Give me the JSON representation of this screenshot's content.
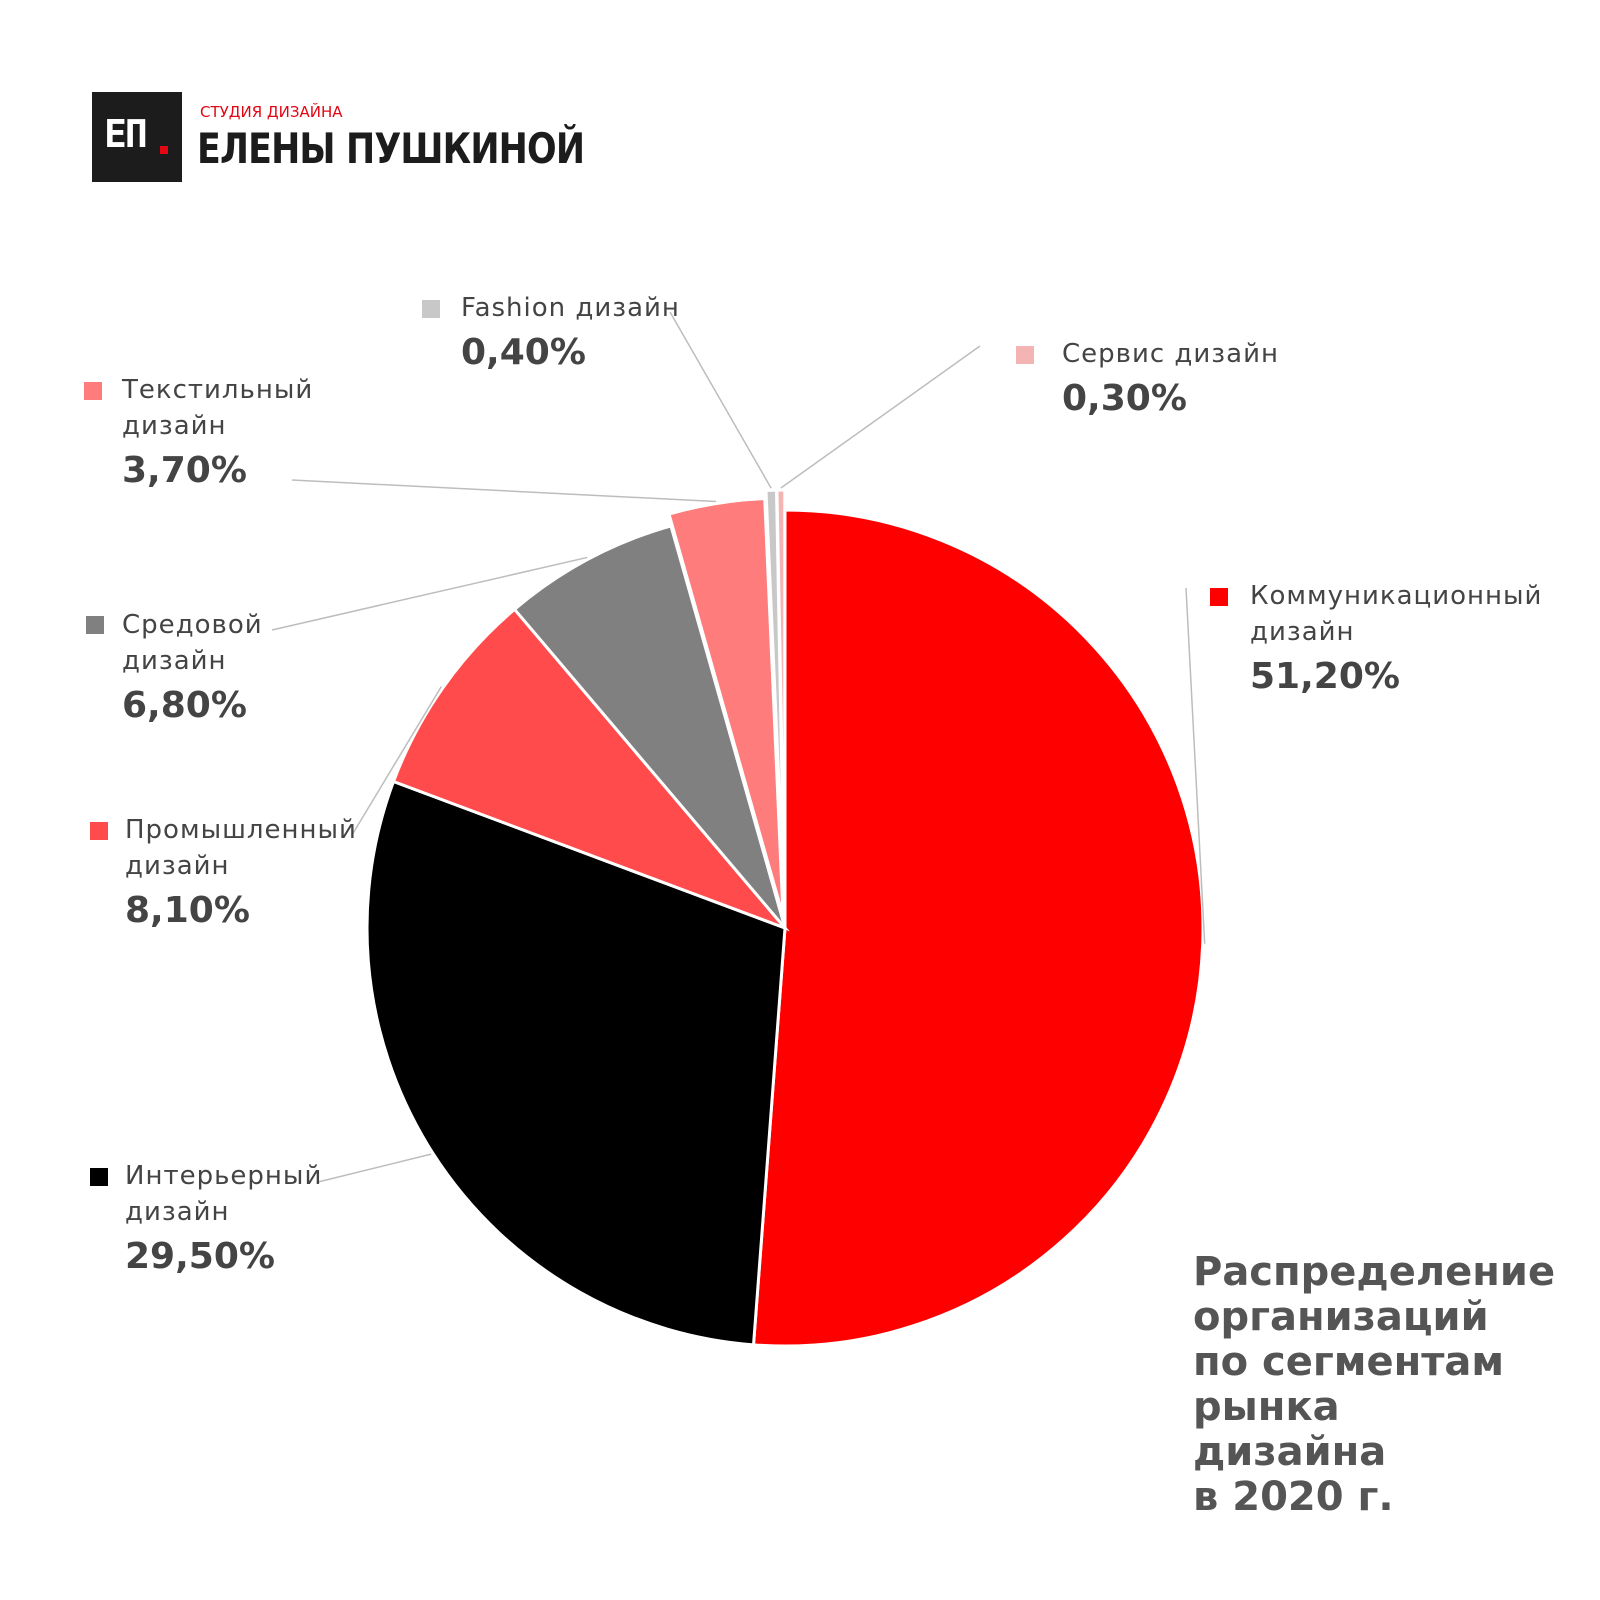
{
  "brand": {
    "mark": "ЕП",
    "subtitle": "СТУДИЯ ДИЗАЙНА",
    "name": "ЕЛЕНЫ ПУШКИНОЙ",
    "accent": "#e30613"
  },
  "title_lines": [
    "Распределение",
    "организаций",
    "по сегментам",
    "рынка",
    "дизайна",
    "в 2020 г."
  ],
  "chart_data": {
    "type": "pie",
    "title": "Распределение организаций по сегментам рынка дизайна в 2020 г.",
    "slices": [
      {
        "name": "Коммуникационный дизайн",
        "name_lines": [
          "Коммуникационный",
          "дизайн"
        ],
        "value": 51.2,
        "label": "51,20%",
        "color": "#ff0000"
      },
      {
        "name": "Интерьерный дизайн",
        "name_lines": [
          "Интерьерный",
          "дизайн"
        ],
        "value": 29.5,
        "label": "29,50%",
        "color": "#000000"
      },
      {
        "name": "Промышленный дизайн",
        "name_lines": [
          "Промышленный",
          "дизайн"
        ],
        "value": 8.1,
        "label": "8,10%",
        "color": "#ff4b4b"
      },
      {
        "name": "Средовой дизайн",
        "name_lines": [
          "Средовой",
          "дизайн"
        ],
        "value": 6.8,
        "label": "6,80%",
        "color": "#808080"
      },
      {
        "name": "Текстильный дизайн",
        "name_lines": [
          "Текстильный",
          "дизайн"
        ],
        "value": 3.7,
        "label": "3,70%",
        "color": "#ff7c7c"
      },
      {
        "name": "Fashion дизайн",
        "name_lines": [
          "Fashion дизайн"
        ],
        "value": 0.4,
        "label": "0,40%",
        "color": "#c8c8c8"
      },
      {
        "name": "Сервис дизайн",
        "name_lines": [
          "Сервис дизайн"
        ],
        "value": 0.3,
        "label": "0,30%",
        "color": "#f5b4b4"
      }
    ]
  }
}
